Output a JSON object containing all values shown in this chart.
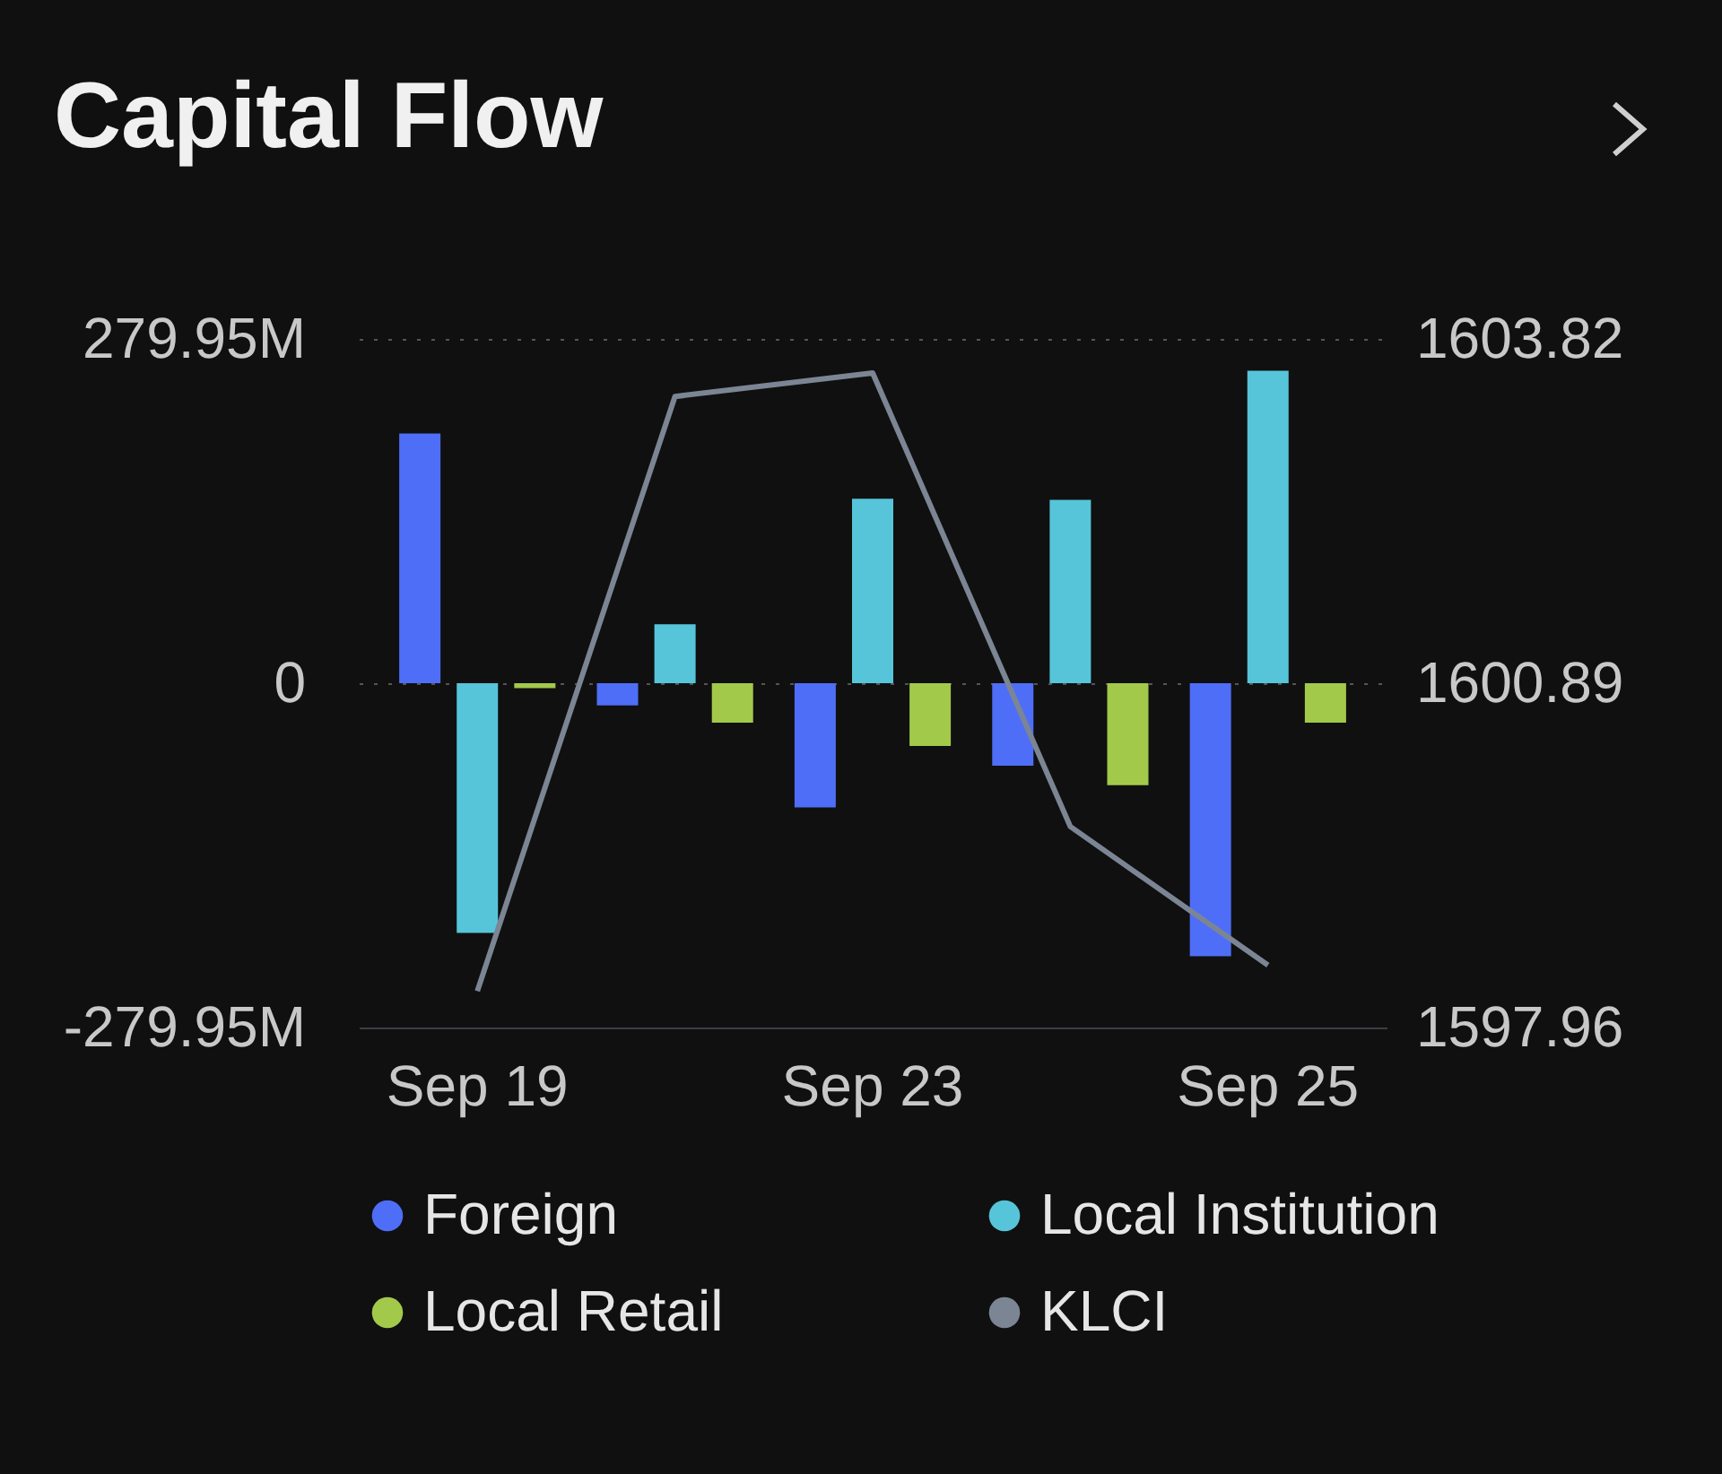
{
  "chart_data": {
    "type": "bar",
    "title": "Capital Flow",
    "categories": [
      "Sep 19",
      null,
      "Sep 23",
      null,
      "Sep 25"
    ],
    "series": [
      {
        "name": "Foreign",
        "color": "#4f6ef7",
        "values": [
          203,
          -18,
          -101,
          -67,
          -222
        ]
      },
      {
        "name": "Local Institution",
        "color": "#56c5d9",
        "values": [
          -203,
          48,
          150,
          149,
          254
        ]
      },
      {
        "name": "Local Retail",
        "color": "#a3c94a",
        "values": [
          -4,
          -32,
          -51,
          -83,
          -32
        ]
      },
      {
        "name": "KLCI",
        "color": "#7c8594",
        "type": "line",
        "axis": "y2",
        "values": [
          1598.27,
          1603.33,
          1603.53,
          1599.67,
          1598.49
        ]
      }
    ],
    "ylim": [
      -279.95,
      279.95
    ],
    "yticks": [
      {
        "value": -279.95,
        "label": "-279.95M"
      },
      0,
      {
        "value": 279.95,
        "label": "279.95M"
      }
    ],
    "y2lim": [
      1597.96,
      1603.82
    ],
    "y2ticks": [
      1597.96,
      1600.89,
      1603.82
    ],
    "grid": "y",
    "legend": "bottom"
  }
}
